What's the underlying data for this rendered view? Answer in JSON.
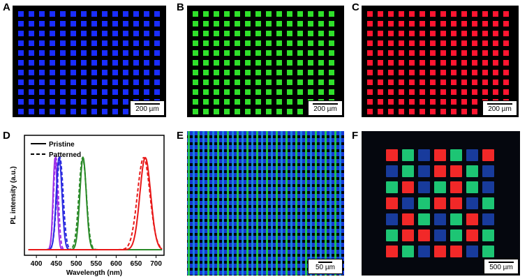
{
  "panels": {
    "a": {
      "label": "A",
      "scale": "200 µm",
      "color": "#1a2dff"
    },
    "b": {
      "label": "B",
      "scale": "200 µm",
      "color": "#2fe02a"
    },
    "c": {
      "label": "C",
      "scale": "200 µm",
      "color": "#ff1530"
    },
    "d": {
      "label": "D"
    },
    "e": {
      "label": "E",
      "scale": "50 µm"
    },
    "f": {
      "label": "F",
      "scale": "500 µm"
    }
  },
  "chart_data": {
    "type": "line",
    "xlabel": "Wavelength (nm)",
    "ylabel": "PL intensity (a.u.)",
    "xlim": [
      370,
      720
    ],
    "xticks": [
      400,
      450,
      500,
      550,
      600,
      650,
      700
    ],
    "legend": {
      "placement": "top-left",
      "entries": [
        {
          "label": "Pristine",
          "style": "solid"
        },
        {
          "label": "Patterned",
          "style": "dashed"
        }
      ]
    },
    "series": [
      {
        "color": "#9b30e8",
        "peak": 447,
        "fwhm": 12,
        "variant": "pristine"
      },
      {
        "color": "#9b30e8",
        "peak": 449,
        "fwhm": 14,
        "variant": "patterned"
      },
      {
        "color": "#2a2ae0",
        "peak": 457,
        "fwhm": 17,
        "variant": "pristine"
      },
      {
        "color": "#2a2ae0",
        "peak": 459,
        "fwhm": 19,
        "variant": "patterned"
      },
      {
        "color": "#2a8a28",
        "peak": 517,
        "fwhm": 19,
        "variant": "pristine"
      },
      {
        "color": "#2a8a28",
        "peak": 516,
        "fwhm": 22,
        "variant": "patterned"
      },
      {
        "color": "#e81818",
        "peak": 673,
        "fwhm": 32,
        "variant": "pristine"
      },
      {
        "color": "#e81818",
        "peak": 669,
        "fwhm": 37,
        "variant": "patterned"
      }
    ]
  },
  "grid_f": {
    "rows": [
      [
        "red",
        "green",
        "blue",
        "red",
        "green",
        "blue",
        "red"
      ],
      [
        "blue",
        "green",
        "blue",
        "red",
        "red",
        "green",
        "blue"
      ],
      [
        "green",
        "red",
        "blue",
        "green",
        "red",
        "green",
        "blue"
      ],
      [
        "red",
        "blue",
        "green",
        "red",
        "red",
        "blue",
        "green"
      ],
      [
        "blue",
        "red",
        "green",
        "blue",
        "green",
        "red",
        "blue"
      ],
      [
        "green",
        "red",
        "red",
        "blue",
        "green",
        "red",
        "green"
      ],
      [
        "red",
        "green",
        "blue",
        "red",
        "red",
        "blue",
        "green"
      ]
    ],
    "colors": {
      "red": "#ff2a2a",
      "green": "#1fd07a",
      "blue": "#1f4ecc"
    }
  }
}
